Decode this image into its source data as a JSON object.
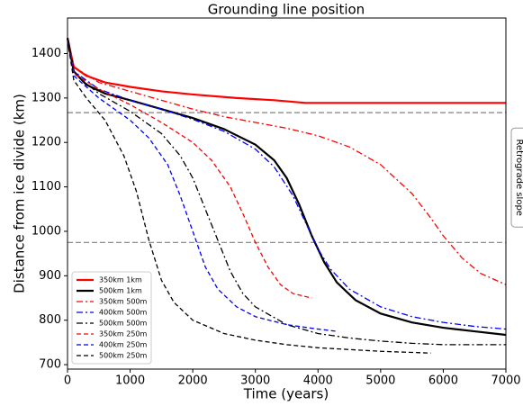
{
  "chart_data": {
    "type": "line",
    "title": "Grounding line position",
    "x_label": "Time (years)",
    "y_label": "Distance from ice divide (km)",
    "xlim": [
      0,
      7000
    ],
    "ylim": [
      690,
      1480
    ],
    "xticks": [
      0,
      1000,
      2000,
      3000,
      4000,
      5000,
      6000,
      7000
    ],
    "yticks": [
      700,
      800,
      900,
      1000,
      1100,
      1200,
      1300,
      1400
    ],
    "legend": "lower left",
    "hlines": [
      1267,
      975
    ],
    "hline_color": "#808080",
    "annotation": "Retrograde slope",
    "series": [
      {
        "name": "350km 1km",
        "color": "#ff0000",
        "style": "solid",
        "width": 2.2,
        "x": [
          0,
          100,
          300,
          600,
          1000,
          1500,
          2000,
          2700,
          3300,
          3800,
          7000
        ],
        "values": [
          1435,
          1370,
          1350,
          1335,
          1325,
          1315,
          1308,
          1300,
          1295,
          1289,
          1289
        ]
      },
      {
        "name": "500km 1km",
        "color": "#000000",
        "style": "solid",
        "width": 2.2,
        "x": [
          0,
          100,
          300,
          600,
          1000,
          1500,
          2000,
          2500,
          3000,
          3300,
          3500,
          3700,
          3900,
          4100,
          4300,
          4600,
          5000,
          5500,
          6000,
          6500,
          7000
        ],
        "values": [
          1435,
          1360,
          1330,
          1310,
          1295,
          1275,
          1255,
          1230,
          1195,
          1160,
          1120,
          1060,
          990,
          930,
          885,
          845,
          815,
          795,
          783,
          775,
          767
        ]
      },
      {
        "name": "350km 500m",
        "color": "#ff0000",
        "style": "dashdot",
        "width": 1.3,
        "x": [
          0,
          100,
          500,
          1000,
          1500,
          2000,
          2500,
          3000,
          3500,
          4000,
          4500,
          5000,
          5500,
          5800,
          6000,
          6300,
          6600,
          7000
        ],
        "values": [
          1430,
          1370,
          1335,
          1315,
          1295,
          1275,
          1258,
          1245,
          1232,
          1215,
          1190,
          1150,
          1085,
          1030,
          990,
          940,
          905,
          880
        ]
      },
      {
        "name": "400km 500m",
        "color": "#0000ff",
        "style": "dashdot",
        "width": 1.3,
        "x": [
          0,
          100,
          500,
          1000,
          1500,
          2000,
          2500,
          3000,
          3300,
          3600,
          3800,
          4000,
          4200,
          4500,
          5000,
          5500,
          6000,
          6500,
          7000
        ],
        "values": [
          1430,
          1360,
          1320,
          1295,
          1275,
          1252,
          1225,
          1185,
          1145,
          1080,
          1020,
          960,
          915,
          870,
          830,
          808,
          795,
          786,
          780
        ]
      },
      {
        "name": "500km 500m",
        "color": "#000000",
        "style": "dashdot",
        "width": 1.3,
        "x": [
          0,
          100,
          500,
          1000,
          1500,
          1800,
          2000,
          2200,
          2400,
          2600,
          2800,
          3000,
          3500,
          4000,
          4500,
          5000,
          5500,
          6000,
          7000
        ],
        "values": [
          1430,
          1355,
          1310,
          1270,
          1220,
          1170,
          1120,
          1050,
          980,
          910,
          860,
          830,
          790,
          770,
          760,
          753,
          748,
          745,
          745
        ]
      },
      {
        "name": "350km 250m",
        "color": "#ff0000",
        "style": "dashed",
        "width": 1.3,
        "x": [
          0,
          100,
          500,
          1000,
          1500,
          2000,
          2300,
          2600,
          2800,
          3000,
          3200,
          3400,
          3600,
          3900
        ],
        "values": [
          1430,
          1355,
          1320,
          1285,
          1245,
          1200,
          1160,
          1100,
          1040,
          975,
          920,
          880,
          860,
          850
        ]
      },
      {
        "name": "400km 250m",
        "color": "#0000ff",
        "style": "dashed",
        "width": 1.3,
        "x": [
          0,
          100,
          500,
          1000,
          1300,
          1600,
          1800,
          2000,
          2200,
          2400,
          2700,
          3000,
          3500,
          4000,
          4300
        ],
        "values": [
          1430,
          1350,
          1300,
          1250,
          1210,
          1150,
          1080,
          1000,
          920,
          870,
          830,
          808,
          790,
          780,
          775
        ]
      },
      {
        "name": "500km 250m",
        "color": "#000000",
        "style": "dashed",
        "width": 1.3,
        "x": [
          0,
          100,
          300,
          600,
          900,
          1100,
          1300,
          1500,
          1700,
          2000,
          2500,
          3000,
          3500,
          4000,
          5000,
          5800
        ],
        "values": [
          1430,
          1340,
          1300,
          1250,
          1170,
          1090,
          980,
          890,
          840,
          800,
          770,
          755,
          745,
          738,
          730,
          726
        ]
      }
    ]
  }
}
